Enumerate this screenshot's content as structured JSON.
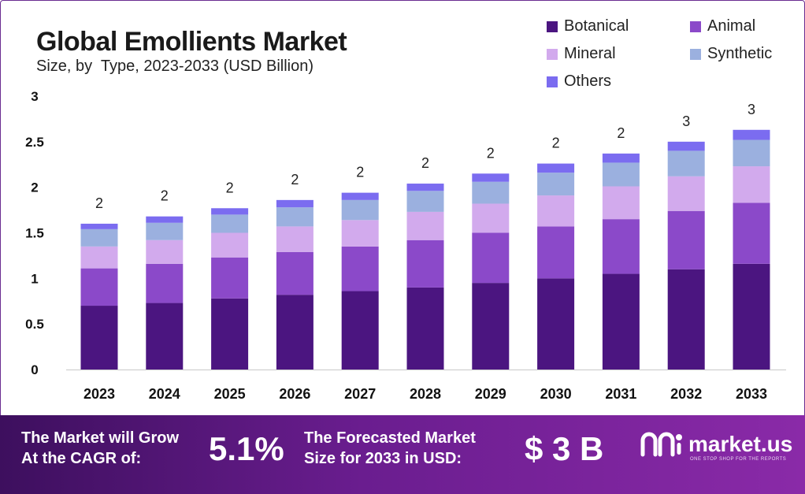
{
  "title": "Global Emollients Market",
  "subtitle": "Size, by  Type, 2023-2033 (USD Billion)",
  "legend": [
    {
      "name": "Botanical",
      "color": "#4b1580"
    },
    {
      "name": "Animal",
      "color": "#8b49c9"
    },
    {
      "name": "Mineral",
      "color": "#d2aaed"
    },
    {
      "name": "Synthetic",
      "color": "#9bb0df"
    },
    {
      "name": "Others",
      "color": "#7b6cf0"
    }
  ],
  "chart_data": {
    "type": "bar",
    "stacked": true,
    "categories": [
      "2023",
      "2024",
      "2025",
      "2026",
      "2027",
      "2028",
      "2029",
      "2030",
      "2031",
      "2032",
      "2033"
    ],
    "series": [
      {
        "name": "Botanical",
        "values": [
          0.7,
          0.73,
          0.78,
          0.82,
          0.86,
          0.9,
          0.95,
          1.0,
          1.05,
          1.1,
          1.16
        ]
      },
      {
        "name": "Animal",
        "values": [
          0.41,
          0.43,
          0.45,
          0.47,
          0.49,
          0.52,
          0.55,
          0.57,
          0.6,
          0.64,
          0.67
        ]
      },
      {
        "name": "Mineral",
        "values": [
          0.24,
          0.26,
          0.27,
          0.28,
          0.29,
          0.31,
          0.32,
          0.34,
          0.36,
          0.38,
          0.4
        ]
      },
      {
        "name": "Synthetic",
        "values": [
          0.19,
          0.19,
          0.2,
          0.21,
          0.22,
          0.23,
          0.24,
          0.25,
          0.26,
          0.28,
          0.29
        ]
      },
      {
        "name": "Others",
        "values": [
          0.06,
          0.07,
          0.07,
          0.08,
          0.08,
          0.08,
          0.09,
          0.1,
          0.1,
          0.1,
          0.11
        ]
      }
    ],
    "totals_labels": [
      "2",
      "2",
      "2",
      "2",
      "2",
      "2",
      "2",
      "2",
      "2",
      "3",
      "3"
    ],
    "yticks": [
      "0",
      "0.5",
      "1",
      "1.5",
      "2",
      "2.5",
      "3"
    ],
    "ylim": [
      0,
      3
    ],
    "grid": false,
    "legend_position": "top-right"
  },
  "banner": {
    "cagr_label_line1": "The Market will Grow",
    "cagr_label_line2": "At the CAGR of:",
    "cagr_value": "5.1%",
    "forecast_label_line1": "The Forecasted Market",
    "forecast_label_line2": "Size for 2033 in USD:",
    "forecast_value": "$ 3 B",
    "logo_text": "market.us",
    "logo_tagline": "ONE STOP SHOP FOR THE REPORTS"
  }
}
